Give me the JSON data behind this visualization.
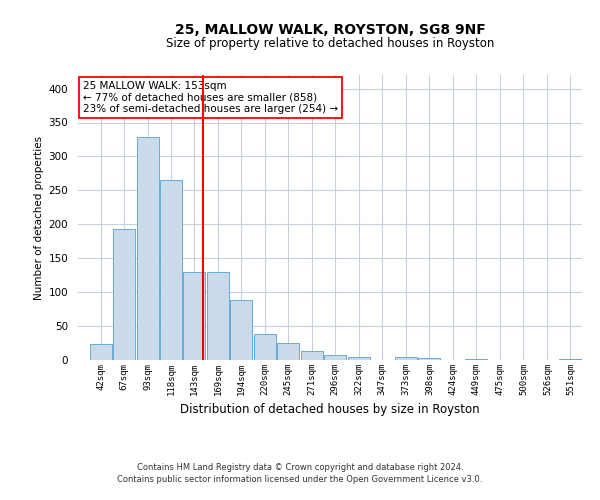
{
  "title1": "25, MALLOW WALK, ROYSTON, SG8 9NF",
  "title2": "Size of property relative to detached houses in Royston",
  "xlabel": "Distribution of detached houses by size in Royston",
  "ylabel": "Number of detached properties",
  "categories": [
    "42sqm",
    "67sqm",
    "93sqm",
    "118sqm",
    "143sqm",
    "169sqm",
    "194sqm",
    "220sqm",
    "245sqm",
    "271sqm",
    "296sqm",
    "322sqm",
    "347sqm",
    "373sqm",
    "398sqm",
    "424sqm",
    "449sqm",
    "475sqm",
    "500sqm",
    "526sqm",
    "551sqm"
  ],
  "values": [
    23,
    193,
    328,
    265,
    130,
    130,
    88,
    38,
    25,
    14,
    7,
    5,
    0,
    4,
    3,
    0,
    2,
    0,
    0,
    0,
    2
  ],
  "bar_color": "#c9daea",
  "bar_edge_color": "#6aaad4",
  "grid_color": "#c8d0dc",
  "annotation_line_color": "red",
  "annotation_box_text": "25 MALLOW WALK: 153sqm\n← 77% of detached houses are smaller (858)\n23% of semi-detached houses are larger (254) →",
  "footer1": "Contains HM Land Registry data © Crown copyright and database right 2024.",
  "footer2": "Contains public sector information licensed under the Open Government Licence v3.0.",
  "ylim": [
    0,
    420
  ],
  "yticks": [
    0,
    50,
    100,
    150,
    200,
    250,
    300,
    350,
    400
  ],
  "property_sqm": 153,
  "bin_centers": [
    42,
    67,
    93,
    118,
    143,
    169,
    194,
    220,
    245,
    271,
    296,
    322,
    347,
    373,
    398,
    424,
    449,
    475,
    500,
    526,
    551
  ],
  "bin_width": 25
}
